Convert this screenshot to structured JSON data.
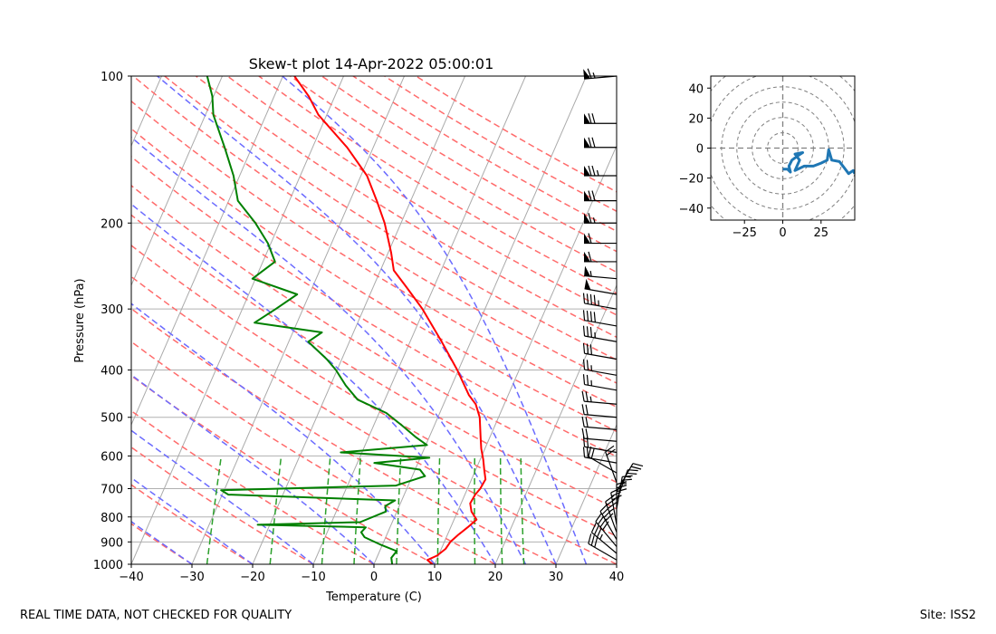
{
  "footer": {
    "quality_note": "REAL TIME DATA, NOT CHECKED FOR QUALITY",
    "site": "Site: ISS2"
  },
  "chart_data": [
    {
      "type": "line",
      "name": "skew-t",
      "title": "Skew-t plot 14-Apr-2022 05:00:01",
      "xlabel": "Temperature (C)",
      "ylabel": "Pressure (hPa)",
      "xlim": [
        -40,
        40
      ],
      "ylim": [
        1000,
        100
      ],
      "x_ticks": [
        -40,
        -30,
        -20,
        -10,
        0,
        10,
        20,
        30,
        40
      ],
      "y_ticks": [
        1000,
        900,
        800,
        700,
        600,
        500,
        400,
        300,
        200,
        100
      ],
      "colors": {
        "temperature": "#ff0000",
        "dewpoint": "#008000",
        "dry_adiabat": "#ff6b6b",
        "moist_adiabat": "#6b6bff",
        "mixing_ratio": "#2ca02c",
        "isotherm": "#aaaaaa"
      },
      "series": [
        {
          "name": "Temperature",
          "points": [
            {
              "p": 1000,
              "t": 9.6
            },
            {
              "p": 980,
              "t": 8.5
            },
            {
              "p": 960,
              "t": 9.8
            },
            {
              "p": 930,
              "t": 10.7
            },
            {
              "p": 900,
              "t": 11.0
            },
            {
              "p": 870,
              "t": 11.8
            },
            {
              "p": 840,
              "t": 12.8
            },
            {
              "p": 810,
              "t": 13.7
            },
            {
              "p": 780,
              "t": 12.3
            },
            {
              "p": 750,
              "t": 11.5
            },
            {
              "p": 720,
              "t": 11.7
            },
            {
              "p": 700,
              "t": 12.1
            },
            {
              "p": 670,
              "t": 12.3
            },
            {
              "p": 640,
              "t": 11.4
            },
            {
              "p": 610,
              "t": 10.5
            },
            {
              "p": 580,
              "t": 9.4
            },
            {
              "p": 550,
              "t": 8.5
            },
            {
              "p": 500,
              "t": 6.9
            },
            {
              "p": 470,
              "t": 5.3
            },
            {
              "p": 450,
              "t": 3.5
            },
            {
              "p": 400,
              "t": -0.2
            },
            {
              "p": 350,
              "t": -4.8
            },
            {
              "p": 300,
              "t": -10.3
            },
            {
              "p": 270,
              "t": -14.6
            },
            {
              "p": 250,
              "t": -17.8
            },
            {
              "p": 230,
              "t": -19.5
            },
            {
              "p": 200,
              "t": -22.7
            },
            {
              "p": 180,
              "t": -25.6
            },
            {
              "p": 160,
              "t": -29.0
            },
            {
              "p": 140,
              "t": -34.3
            },
            {
              "p": 120,
              "t": -41.4
            },
            {
              "p": 110,
              "t": -44.3
            },
            {
              "p": 100,
              "t": -48.1
            }
          ]
        },
        {
          "name": "Dewpoint",
          "points": [
            {
              "p": 1000,
              "t": 3.0
            },
            {
              "p": 970,
              "t": 2.4
            },
            {
              "p": 940,
              "t": 2.8
            },
            {
              "p": 910,
              "t": -0.5
            },
            {
              "p": 880,
              "t": -3.5
            },
            {
              "p": 860,
              "t": -4.4
            },
            {
              "p": 840,
              "t": -4.0
            },
            {
              "p": 830,
              "t": -22.0
            },
            {
              "p": 820,
              "t": -5.3
            },
            {
              "p": 780,
              "t": -1.8
            },
            {
              "p": 760,
              "t": -2.3
            },
            {
              "p": 740,
              "t": -1.1
            },
            {
              "p": 720,
              "t": -29.0
            },
            {
              "p": 705,
              "t": -30.5
            },
            {
              "p": 690,
              "t": -2.0
            },
            {
              "p": 660,
              "t": 2.1
            },
            {
              "p": 640,
              "t": 0.8
            },
            {
              "p": 620,
              "t": -7.2
            },
            {
              "p": 605,
              "t": 1.5
            },
            {
              "p": 590,
              "t": -13.5
            },
            {
              "p": 570,
              "t": 0.2
            },
            {
              "p": 550,
              "t": -2.1
            },
            {
              "p": 520,
              "t": -5.3
            },
            {
              "p": 490,
              "t": -8.8
            },
            {
              "p": 460,
              "t": -14.5
            },
            {
              "p": 430,
              "t": -17.5
            },
            {
              "p": 400,
              "t": -20.2
            },
            {
              "p": 380,
              "t": -22.5
            },
            {
              "p": 350,
              "t": -26.8
            },
            {
              "p": 335,
              "t": -25.2
            },
            {
              "p": 320,
              "t": -37.0
            },
            {
              "p": 300,
              "t": -34.5
            },
            {
              "p": 280,
              "t": -32.0
            },
            {
              "p": 260,
              "t": -40.5
            },
            {
              "p": 240,
              "t": -38.0
            },
            {
              "p": 220,
              "t": -40.5
            },
            {
              "p": 200,
              "t": -44.0
            },
            {
              "p": 180,
              "t": -48.5
            },
            {
              "p": 160,
              "t": -51.0
            },
            {
              "p": 140,
              "t": -54.5
            },
            {
              "p": 120,
              "t": -58.7
            },
            {
              "p": 110,
              "t": -60.2
            },
            {
              "p": 100,
              "t": -62.5
            }
          ]
        }
      ],
      "wind_barbs": [
        {
          "p": 980,
          "speed": 30,
          "dir": 300
        },
        {
          "p": 950,
          "speed": 35,
          "dir": 310
        },
        {
          "p": 920,
          "speed": 40,
          "dir": 320
        },
        {
          "p": 890,
          "speed": 40,
          "dir": 330
        },
        {
          "p": 860,
          "speed": 35,
          "dir": 340
        },
        {
          "p": 830,
          "speed": 30,
          "dir": 350
        },
        {
          "p": 800,
          "speed": 30,
          "dir": 0
        },
        {
          "p": 770,
          "speed": 25,
          "dir": 10
        },
        {
          "p": 740,
          "speed": 25,
          "dir": 20
        },
        {
          "p": 710,
          "speed": 20,
          "dir": 30
        },
        {
          "p": 680,
          "speed": 20,
          "dir": 340
        },
        {
          "p": 650,
          "speed": 20,
          "dir": 300
        },
        {
          "p": 620,
          "speed": 20,
          "dir": 280
        },
        {
          "p": 590,
          "speed": 20,
          "dir": 280
        },
        {
          "p": 560,
          "speed": 20,
          "dir": 275
        },
        {
          "p": 530,
          "speed": 20,
          "dir": 275
        },
        {
          "p": 500,
          "speed": 20,
          "dir": 275
        },
        {
          "p": 470,
          "speed": 25,
          "dir": 275
        },
        {
          "p": 440,
          "speed": 25,
          "dir": 280
        },
        {
          "p": 410,
          "speed": 25,
          "dir": 280
        },
        {
          "p": 380,
          "speed": 30,
          "dir": 280
        },
        {
          "p": 350,
          "speed": 35,
          "dir": 280
        },
        {
          "p": 325,
          "speed": 40,
          "dir": 280
        },
        {
          "p": 300,
          "speed": 45,
          "dir": 280
        },
        {
          "p": 280,
          "speed": 50,
          "dir": 280
        },
        {
          "p": 260,
          "speed": 55,
          "dir": 275
        },
        {
          "p": 240,
          "speed": 60,
          "dir": 270
        },
        {
          "p": 220,
          "speed": 60,
          "dir": 270
        },
        {
          "p": 200,
          "speed": 65,
          "dir": 270
        },
        {
          "p": 180,
          "speed": 70,
          "dir": 270
        },
        {
          "p": 160,
          "speed": 75,
          "dir": 270
        },
        {
          "p": 140,
          "speed": 70,
          "dir": 270
        },
        {
          "p": 125,
          "speed": 70,
          "dir": 270
        },
        {
          "p": 100,
          "speed": 65,
          "dir": 265
        }
      ]
    },
    {
      "type": "line",
      "name": "hodograph",
      "xlim": [
        -47,
        47
      ],
      "ylim": [
        -48,
        48
      ],
      "x_ticks": [
        -25,
        0,
        25
      ],
      "y_ticks": [
        40,
        20,
        0,
        -20,
        -40
      ],
      "rings": [
        10,
        20,
        30,
        40,
        50,
        60
      ],
      "color": "#1f77b4",
      "points": [
        [
          0,
          -14
        ],
        [
          3,
          -14
        ],
        [
          5,
          -16
        ],
        [
          4,
          -12
        ],
        [
          6,
          -8
        ],
        [
          10,
          -5
        ],
        [
          13,
          -3
        ],
        [
          8,
          -4
        ],
        [
          11,
          -8
        ],
        [
          8,
          -15
        ],
        [
          14,
          -12
        ],
        [
          20,
          -12
        ],
        [
          25,
          -10
        ],
        [
          29,
          -8
        ],
        [
          30,
          -1
        ],
        [
          32,
          -8
        ],
        [
          37,
          -9
        ],
        [
          40,
          -13
        ],
        [
          43,
          -17
        ],
        [
          46,
          -15
        ],
        [
          47,
          -17
        ]
      ]
    }
  ]
}
